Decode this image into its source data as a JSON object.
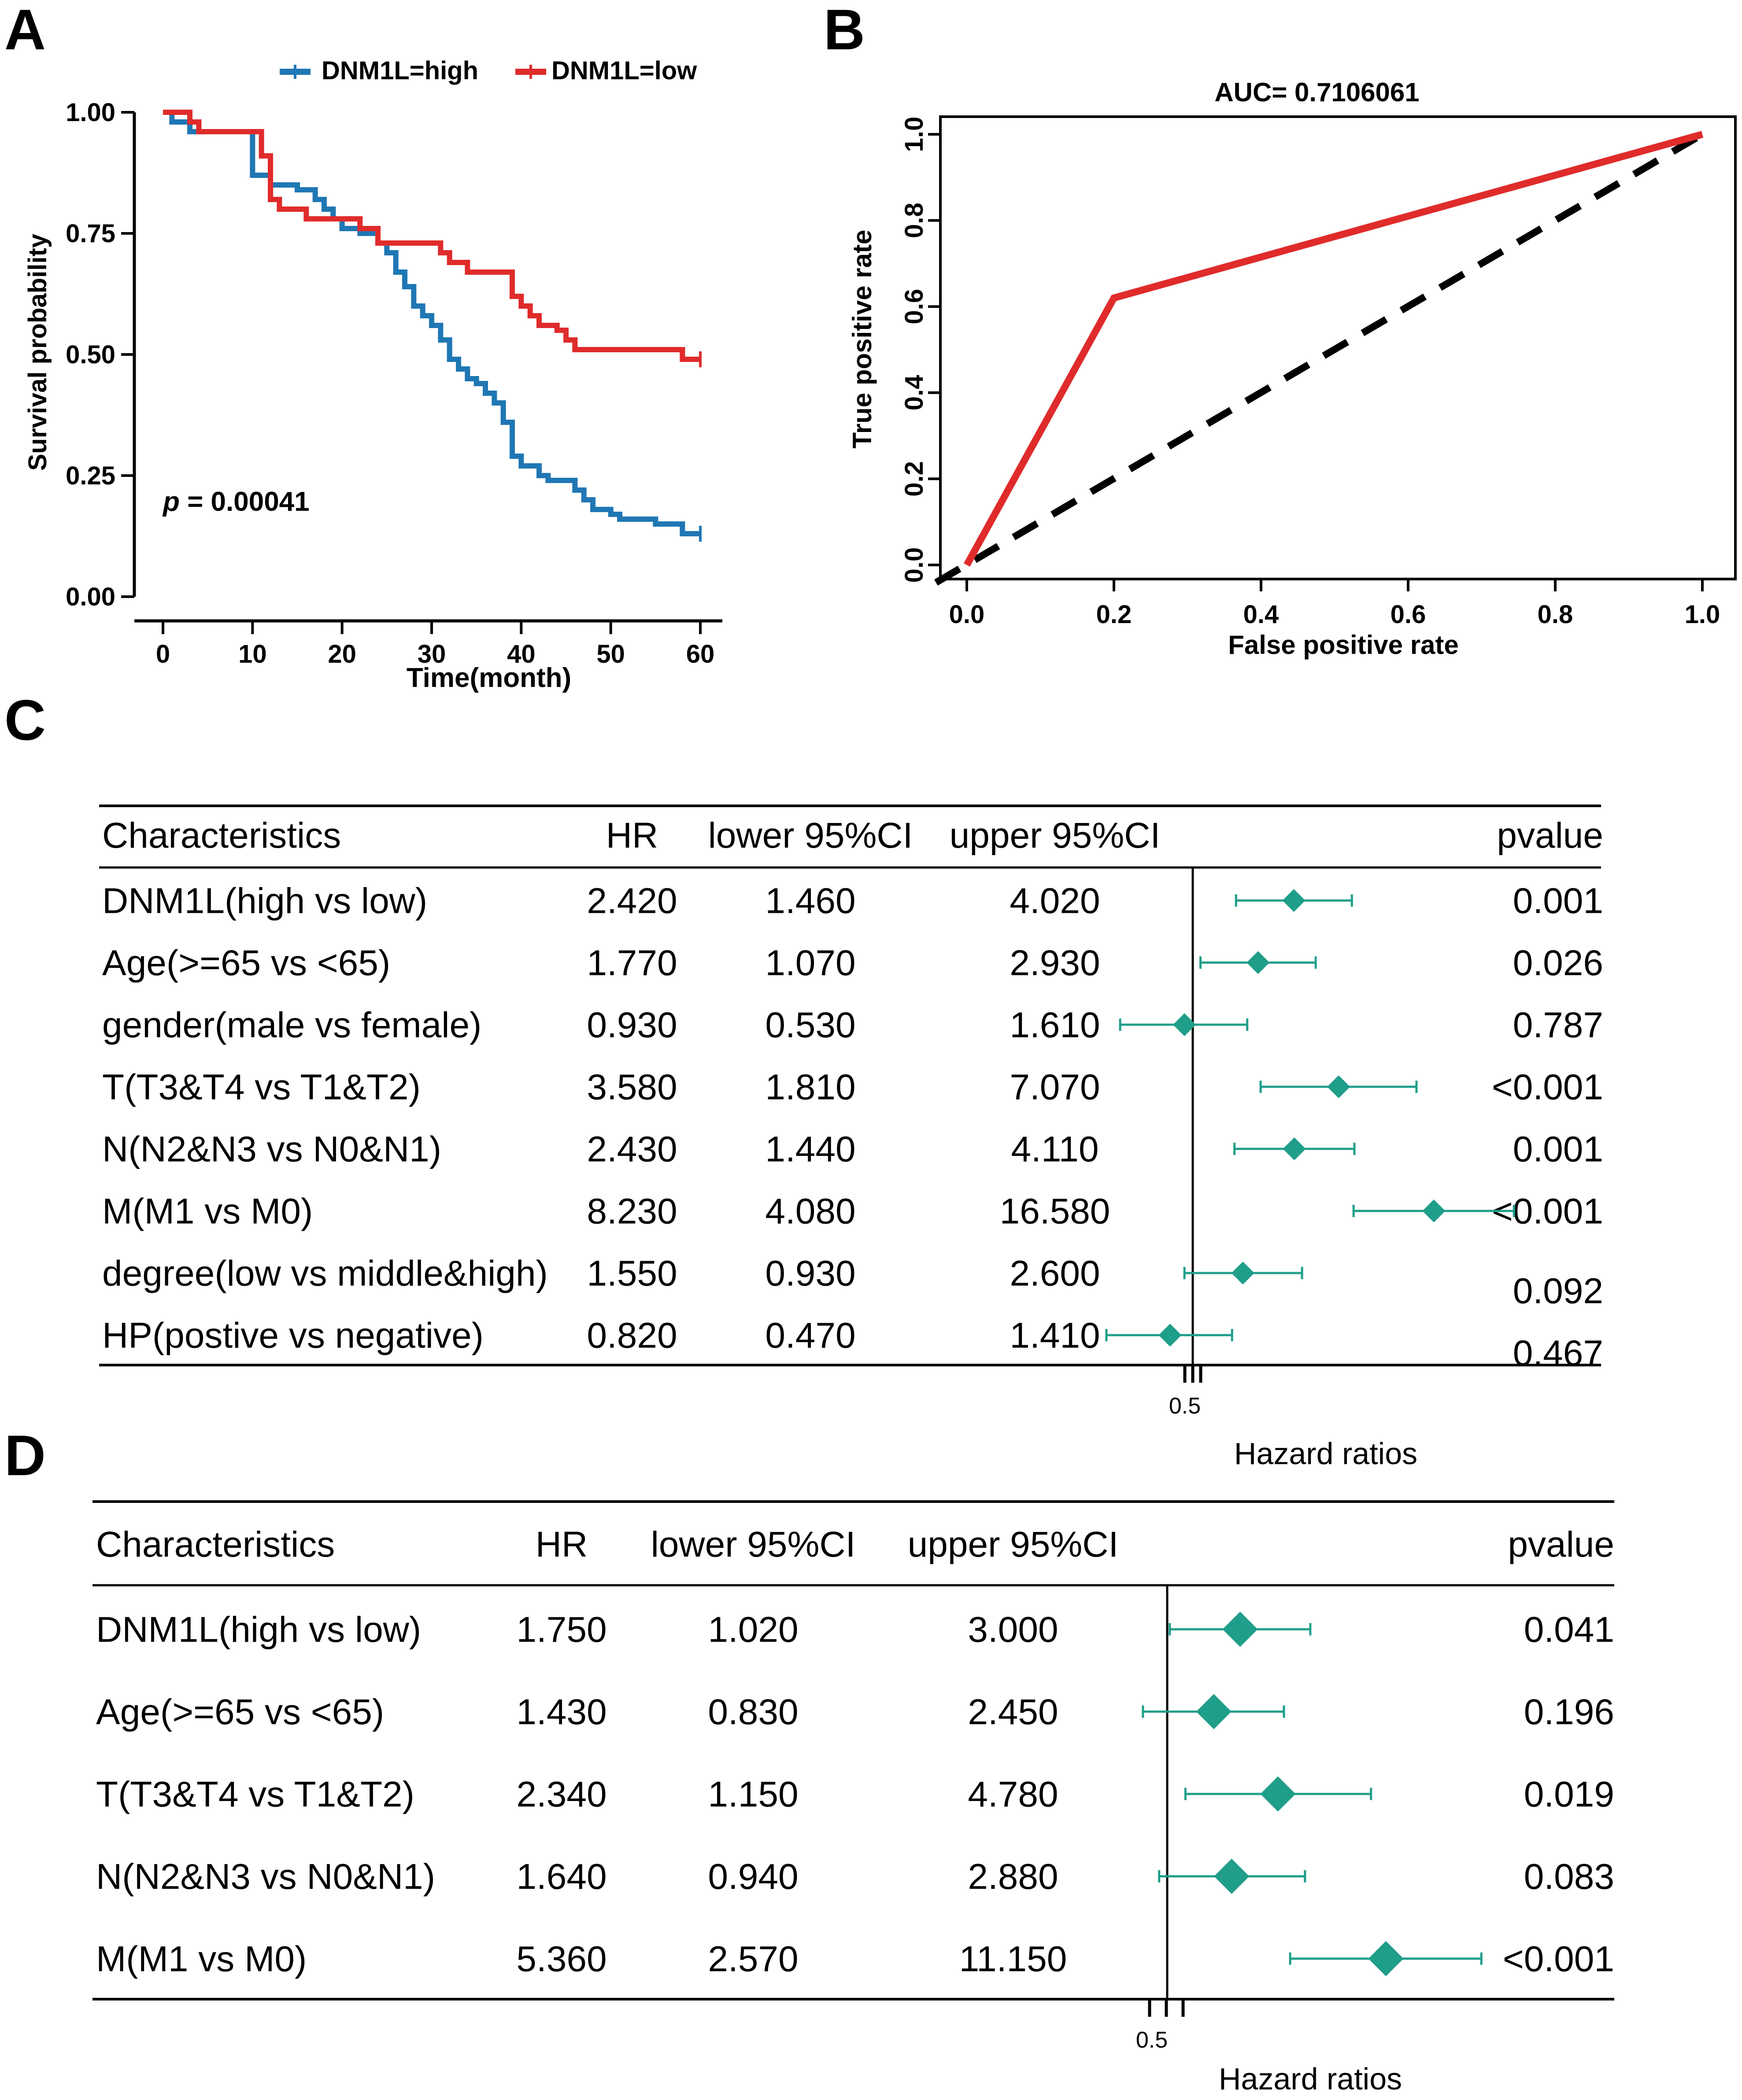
{
  "panels": {
    "A": {
      "letter": "A"
    },
    "B": {
      "letter": "B"
    },
    "C": {
      "letter": "C"
    },
    "D": {
      "letter": "D"
    }
  },
  "colors": {
    "high": "#1f77b4",
    "low": "#e02b2b",
    "forest": "#1f9e89",
    "black": "#000000"
  },
  "chart_data": [
    {
      "id": "A",
      "type": "line",
      "title": "",
      "xlabel": "Time(month)",
      "ylabel": "Survival probability",
      "xlim": [
        0,
        60
      ],
      "ylim": [
        0,
        1
      ],
      "xticks": [
        "0",
        "10",
        "20",
        "30",
        "40",
        "50",
        "60"
      ],
      "yticks": [
        "0.00",
        "0.25",
        "0.50",
        "0.75",
        "1.00"
      ],
      "annotation": {
        "prefix": "p",
        "text": " = 0.00041"
      },
      "legend": [
        "DNM1L=high",
        "DNM1L=low"
      ],
      "series": [
        {
          "name": "DNM1L=high",
          "x": [
            0,
            1,
            2,
            3,
            4,
            6,
            8,
            10,
            11,
            12,
            13,
            15,
            16,
            17,
            18,
            19,
            20,
            22,
            24,
            25,
            26,
            27,
            28,
            29,
            30,
            31,
            32,
            33,
            34,
            35,
            36,
            37,
            38,
            39,
            40,
            41,
            42,
            43,
            44,
            45,
            46,
            47,
            48,
            49,
            50,
            51,
            52,
            53,
            54,
            55,
            56,
            57,
            58,
            59,
            60
          ],
          "y": [
            1.0,
            0.98,
            0.98,
            0.96,
            0.96,
            0.96,
            0.96,
            0.87,
            0.87,
            0.85,
            0.85,
            0.84,
            0.84,
            0.82,
            0.8,
            0.78,
            0.76,
            0.75,
            0.73,
            0.71,
            0.67,
            0.64,
            0.6,
            0.58,
            0.56,
            0.53,
            0.49,
            0.47,
            0.45,
            0.44,
            0.42,
            0.4,
            0.36,
            0.29,
            0.27,
            0.27,
            0.25,
            0.24,
            0.24,
            0.24,
            0.22,
            0.2,
            0.18,
            0.18,
            0.17,
            0.16,
            0.16,
            0.16,
            0.16,
            0.15,
            0.15,
            0.15,
            0.13,
            0.13,
            0.13
          ]
        },
        {
          "name": "DNM1L=low",
          "x": [
            0,
            2,
            3,
            4,
            6,
            8,
            9,
            10,
            11,
            12,
            13,
            15,
            16,
            18,
            20,
            22,
            24,
            26,
            27,
            29,
            30,
            31,
            32,
            34,
            36,
            38,
            39,
            40,
            41,
            42,
            43,
            44,
            45,
            46,
            47,
            48,
            50,
            52,
            54,
            56,
            58,
            60
          ],
          "y": [
            1.0,
            1.0,
            0.98,
            0.96,
            0.96,
            0.96,
            0.96,
            0.96,
            0.91,
            0.82,
            0.8,
            0.8,
            0.78,
            0.78,
            0.78,
            0.76,
            0.73,
            0.73,
            0.73,
            0.73,
            0.73,
            0.71,
            0.69,
            0.67,
            0.67,
            0.67,
            0.62,
            0.6,
            0.58,
            0.56,
            0.56,
            0.55,
            0.53,
            0.51,
            0.51,
            0.51,
            0.51,
            0.51,
            0.51,
            0.51,
            0.49,
            0.49
          ]
        }
      ]
    },
    {
      "id": "B",
      "type": "line",
      "title": "AUC= 0.7106061",
      "xlabel": "False positive rate",
      "ylabel": "True positive rate",
      "xlim": [
        0,
        1
      ],
      "ylim": [
        0,
        1
      ],
      "xticks": [
        "0.0",
        "0.2",
        "0.4",
        "0.6",
        "0.8",
        "1.0"
      ],
      "yticks": [
        "0.0",
        "0.2",
        "0.4",
        "0.6",
        "0.8",
        "1.0"
      ],
      "series": [
        {
          "name": "ROC",
          "x": [
            0,
            0.2,
            1.0
          ],
          "y": [
            0,
            0.62,
            1.0
          ]
        },
        {
          "name": "reference",
          "x": [
            0,
            1
          ],
          "y": [
            0,
            1
          ]
        }
      ]
    },
    {
      "id": "C",
      "type": "table",
      "columns": [
        "Characteristics",
        "HR",
        "lower 95%CI",
        "upper 95%CI",
        "pvalue"
      ],
      "xlabel": "Hazard ratios",
      "tick": "0.5",
      "rows": [
        {
          "label": "DNM1L(high vs low)",
          "hr": "2.420",
          "lower": "1.460",
          "upper": "4.020",
          "p": "0.001",
          "hrv": 2.42,
          "lov": 1.46,
          "upv": 4.02
        },
        {
          "label": "Age(>=65 vs <65)",
          "hr": "1.770",
          "lower": "1.070",
          "upper": "2.930",
          "p": "0.026",
          "hrv": 1.77,
          "lov": 1.07,
          "upv": 2.93
        },
        {
          "label": "gender(male vs female)",
          "hr": "0.930",
          "lower": "0.530",
          "upper": "1.610",
          "p": "0.787",
          "hrv": 0.93,
          "lov": 0.53,
          "upv": 1.61
        },
        {
          "label": "T(T3&T4 vs T1&T2)",
          "hr": "3.580",
          "lower": "1.810",
          "upper": "7.070",
          "p": "<0.001",
          "hrv": 3.58,
          "lov": 1.81,
          "upv": 7.07
        },
        {
          "label": "N(N2&N3 vs N0&N1)",
          "hr": "2.430",
          "lower": "1.440",
          "upper": "4.110",
          "p": "0.001",
          "hrv": 2.43,
          "lov": 1.44,
          "upv": 4.11
        },
        {
          "label": "M(M1 vs M0)",
          "hr": "8.230",
          "lower": "4.080",
          "upper": "16.580",
          "p": "<0.001",
          "hrv": 8.23,
          "lov": 4.08,
          "upv": 16.58
        },
        {
          "label": "degree(low vs middle&high)",
          "hr": "1.550",
          "lower": "0.930",
          "upper": "2.600",
          "p": "0.092",
          "hrv": 1.55,
          "lov": 0.93,
          "upv": 2.6
        },
        {
          "label": "HP(postive vs negative)",
          "hr": "0.820",
          "lower": "0.470",
          "upper": "1.410",
          "p": "0.467",
          "hrv": 0.82,
          "lov": 0.47,
          "upv": 1.41
        }
      ]
    },
    {
      "id": "D",
      "type": "table",
      "columns": [
        "Characteristics",
        "HR",
        "lower 95%CI",
        "upper 95%CI",
        "pvalue"
      ],
      "xlabel": "Hazard ratios",
      "tick": "0.5",
      "rows": [
        {
          "label": "DNM1L(high vs low)",
          "hr": "1.750",
          "lower": "1.020",
          "upper": "3.000",
          "p": "0.041",
          "hrv": 1.75,
          "lov": 1.02,
          "upv": 3.0
        },
        {
          "label": "Age(>=65 vs <65)",
          "hr": "1.430",
          "lower": "0.830",
          "upper": "2.450",
          "p": "0.196",
          "hrv": 1.43,
          "lov": 0.83,
          "upv": 2.45
        },
        {
          "label": "T(T3&T4 vs T1&T2)",
          "hr": "2.340",
          "lower": "1.150",
          "upper": "4.780",
          "p": "0.019",
          "hrv": 2.34,
          "lov": 1.15,
          "upv": 4.78
        },
        {
          "label": "N(N2&N3 vs N0&N1)",
          "hr": "1.640",
          "lower": "0.940",
          "upper": "2.880",
          "p": "0.083",
          "hrv": 1.64,
          "lov": 0.94,
          "upv": 2.88
        },
        {
          "label": "M(M1 vs M0)",
          "hr": "5.360",
          "lower": "2.570",
          "upper": "11.150",
          "p": "<0.001",
          "hrv": 5.36,
          "lov": 2.57,
          "upv": 11.15
        }
      ]
    }
  ]
}
